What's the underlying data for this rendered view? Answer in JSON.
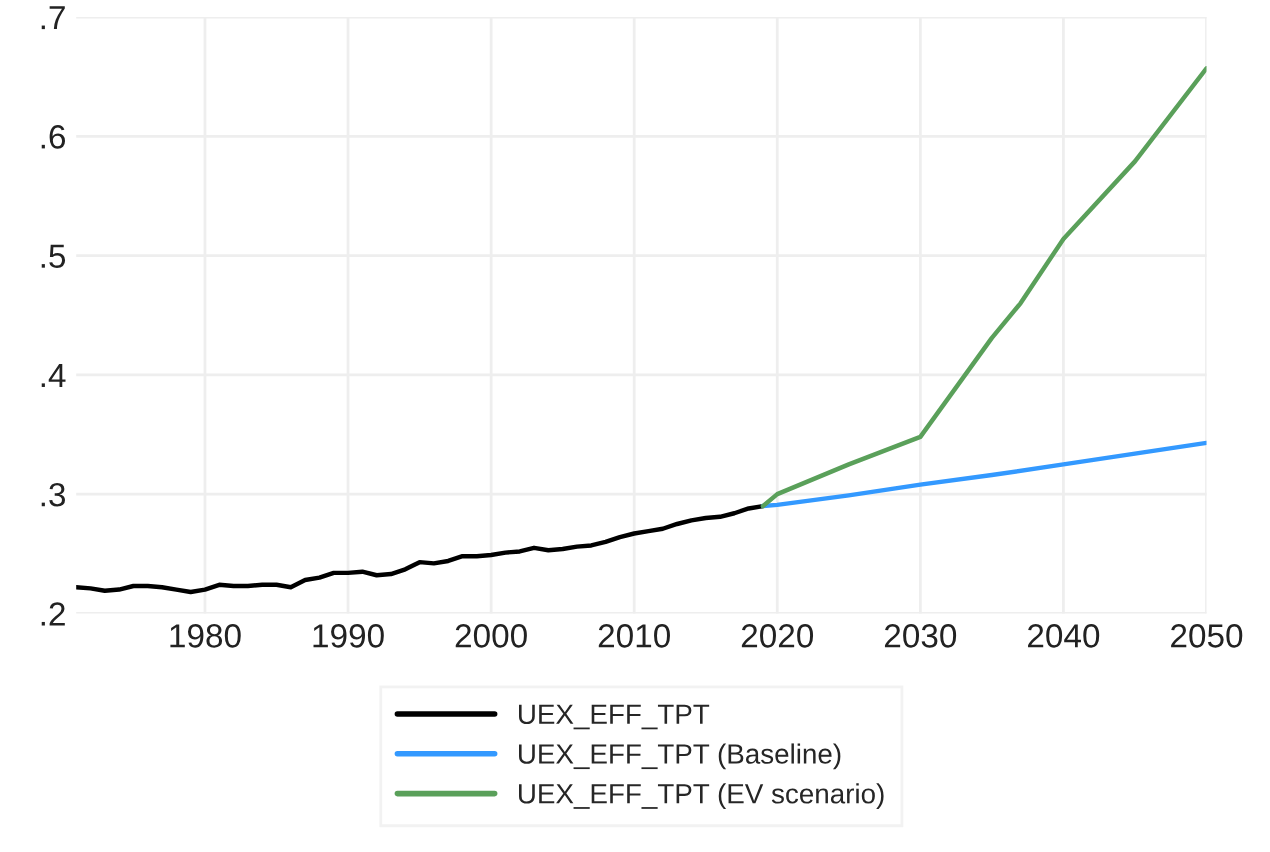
{
  "chart_data": {
    "type": "line",
    "xlim": [
      1971,
      2050
    ],
    "xticks": [
      1980,
      1990,
      2000,
      2010,
      2020,
      2030,
      2040,
      2050
    ],
    "ylim": [
      0.2,
      0.7
    ],
    "yticks": [
      {
        "value": 0.2,
        "label": ".2"
      },
      {
        "value": 0.3,
        "label": ".3"
      },
      {
        "value": 0.4,
        "label": ".4"
      },
      {
        "value": 0.5,
        "label": ".5"
      },
      {
        "value": 0.6,
        "label": ".6"
      },
      {
        "value": 0.7,
        "label": ".7"
      }
    ],
    "grid": true,
    "legend": "bottom",
    "marker": "none",
    "line_style": "solid",
    "series": [
      {
        "name": "UEX_EFF_TPT",
        "color": "#000000",
        "x": [
          1971,
          1972,
          1973,
          1974,
          1975,
          1976,
          1977,
          1978,
          1979,
          1980,
          1981,
          1982,
          1983,
          1984,
          1985,
          1986,
          1987,
          1988,
          1989,
          1990,
          1991,
          1992,
          1993,
          1994,
          1995,
          1996,
          1997,
          1998,
          1999,
          2000,
          2001,
          2002,
          2003,
          2004,
          2005,
          2006,
          2007,
          2008,
          2009,
          2010,
          2011,
          2012,
          2013,
          2014,
          2015,
          2016,
          2017,
          2018,
          2019
        ],
        "values": [
          0.222,
          0.221,
          0.219,
          0.22,
          0.223,
          0.223,
          0.222,
          0.22,
          0.218,
          0.22,
          0.224,
          0.223,
          0.223,
          0.224,
          0.224,
          0.222,
          0.228,
          0.23,
          0.234,
          0.234,
          0.235,
          0.232,
          0.233,
          0.237,
          0.243,
          0.242,
          0.244,
          0.248,
          0.248,
          0.249,
          0.251,
          0.252,
          0.255,
          0.253,
          0.254,
          0.256,
          0.257,
          0.26,
          0.264,
          0.267,
          0.269,
          0.271,
          0.275,
          0.278,
          0.28,
          0.281,
          0.284,
          0.288,
          0.29
        ]
      },
      {
        "name": "UEX_EFF_TPT (Baseline)",
        "color": "#3399ff",
        "x": [
          2019,
          2020,
          2025,
          2030,
          2035,
          2040,
          2045,
          2050
        ],
        "values": [
          0.29,
          0.291,
          0.299,
          0.308,
          0.316,
          0.325,
          0.334,
          0.343
        ]
      },
      {
        "name": "UEX_EFF_TPT (EV scenario)",
        "color": "#5aa05a",
        "x": [
          2019,
          2020,
          2025,
          2030,
          2035,
          2037,
          2040,
          2045,
          2050
        ],
        "values": [
          0.29,
          0.3,
          0.325,
          0.348,
          0.431,
          0.46,
          0.514,
          0.579,
          0.657
        ]
      }
    ]
  }
}
